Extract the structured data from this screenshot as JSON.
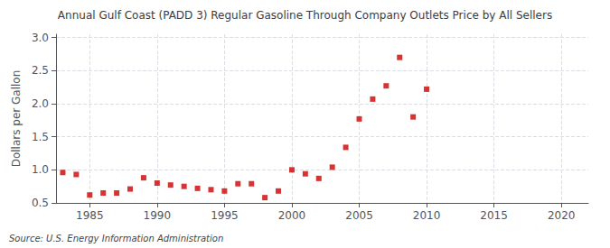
{
  "chart_data": {
    "type": "scatter",
    "title": "Annual Gulf Coast (PADD 3) Regular Gasoline Through Company Outlets Price by All Sellers",
    "ylabel": "Dollars per Gallon",
    "source": "Source: U.S. Energy Information Administration",
    "x": [
      1983,
      1984,
      1985,
      1986,
      1987,
      1988,
      1989,
      1990,
      1991,
      1992,
      1993,
      1994,
      1995,
      1996,
      1997,
      1998,
      1999,
      2000,
      2001,
      2002,
      2003,
      2004,
      2005,
      2006,
      2007,
      2008,
      2009,
      2010
    ],
    "values": [
      0.96,
      0.93,
      0.62,
      0.65,
      0.65,
      0.71,
      0.88,
      0.8,
      0.77,
      0.75,
      0.72,
      0.7,
      0.68,
      0.79,
      0.79,
      0.58,
      0.68,
      1.0,
      0.94,
      0.87,
      1.04,
      1.34,
      1.77,
      2.07,
      2.27,
      2.7,
      1.8,
      2.22
    ],
    "color": "#cc0000",
    "marker": "square",
    "xlim": [
      1982.5,
      2022
    ],
    "xticks": [
      1985,
      1990,
      1995,
      2000,
      2005,
      2010,
      2015,
      2020
    ],
    "ylim": [
      0.5,
      3.05
    ],
    "yticks": [
      0.5,
      {
        "value": 1.0,
        "label": "1.0"
      },
      1.5,
      {
        "value": 2.0,
        "label": "2.0"
      },
      2.5,
      {
        "value": 3.0,
        "label": "3.0"
      }
    ],
    "grid": true
  }
}
